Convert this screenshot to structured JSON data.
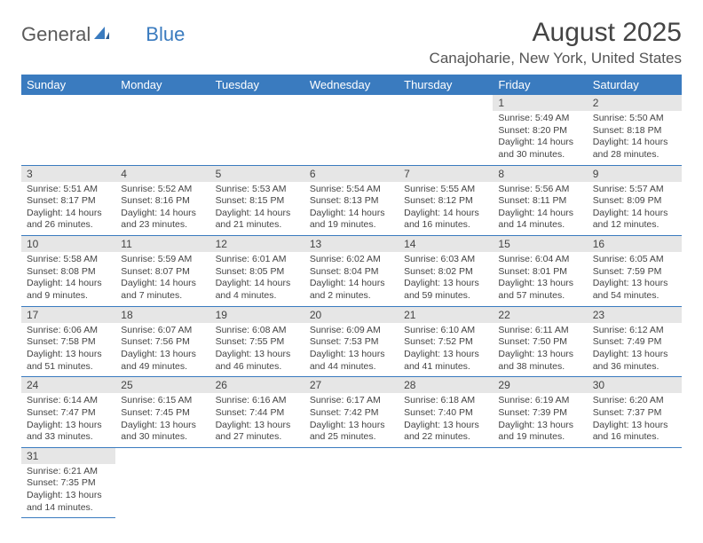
{
  "logo": {
    "part1": "General",
    "part2": "Blue"
  },
  "title": "August 2025",
  "location": "Canajoharie, New York, United States",
  "colors": {
    "header_bg": "#3a7bbf",
    "header_text": "#ffffff",
    "daynum_bg": "#e6e6e6",
    "border": "#3a7bbf",
    "text": "#444444",
    "page_bg": "#ffffff"
  },
  "weekdays": [
    "Sunday",
    "Monday",
    "Tuesday",
    "Wednesday",
    "Thursday",
    "Friday",
    "Saturday"
  ],
  "weeks": [
    [
      null,
      null,
      null,
      null,
      null,
      {
        "d": "1",
        "sr": "5:49 AM",
        "ss": "8:20 PM",
        "dl": "14 hours and 30 minutes."
      },
      {
        "d": "2",
        "sr": "5:50 AM",
        "ss": "8:18 PM",
        "dl": "14 hours and 28 minutes."
      }
    ],
    [
      {
        "d": "3",
        "sr": "5:51 AM",
        "ss": "8:17 PM",
        "dl": "14 hours and 26 minutes."
      },
      {
        "d": "4",
        "sr": "5:52 AM",
        "ss": "8:16 PM",
        "dl": "14 hours and 23 minutes."
      },
      {
        "d": "5",
        "sr": "5:53 AM",
        "ss": "8:15 PM",
        "dl": "14 hours and 21 minutes."
      },
      {
        "d": "6",
        "sr": "5:54 AM",
        "ss": "8:13 PM",
        "dl": "14 hours and 19 minutes."
      },
      {
        "d": "7",
        "sr": "5:55 AM",
        "ss": "8:12 PM",
        "dl": "14 hours and 16 minutes."
      },
      {
        "d": "8",
        "sr": "5:56 AM",
        "ss": "8:11 PM",
        "dl": "14 hours and 14 minutes."
      },
      {
        "d": "9",
        "sr": "5:57 AM",
        "ss": "8:09 PM",
        "dl": "14 hours and 12 minutes."
      }
    ],
    [
      {
        "d": "10",
        "sr": "5:58 AM",
        "ss": "8:08 PM",
        "dl": "14 hours and 9 minutes."
      },
      {
        "d": "11",
        "sr": "5:59 AM",
        "ss": "8:07 PM",
        "dl": "14 hours and 7 minutes."
      },
      {
        "d": "12",
        "sr": "6:01 AM",
        "ss": "8:05 PM",
        "dl": "14 hours and 4 minutes."
      },
      {
        "d": "13",
        "sr": "6:02 AM",
        "ss": "8:04 PM",
        "dl": "14 hours and 2 minutes."
      },
      {
        "d": "14",
        "sr": "6:03 AM",
        "ss": "8:02 PM",
        "dl": "13 hours and 59 minutes."
      },
      {
        "d": "15",
        "sr": "6:04 AM",
        "ss": "8:01 PM",
        "dl": "13 hours and 57 minutes."
      },
      {
        "d": "16",
        "sr": "6:05 AM",
        "ss": "7:59 PM",
        "dl": "13 hours and 54 minutes."
      }
    ],
    [
      {
        "d": "17",
        "sr": "6:06 AM",
        "ss": "7:58 PM",
        "dl": "13 hours and 51 minutes."
      },
      {
        "d": "18",
        "sr": "6:07 AM",
        "ss": "7:56 PM",
        "dl": "13 hours and 49 minutes."
      },
      {
        "d": "19",
        "sr": "6:08 AM",
        "ss": "7:55 PM",
        "dl": "13 hours and 46 minutes."
      },
      {
        "d": "20",
        "sr": "6:09 AM",
        "ss": "7:53 PM",
        "dl": "13 hours and 44 minutes."
      },
      {
        "d": "21",
        "sr": "6:10 AM",
        "ss": "7:52 PM",
        "dl": "13 hours and 41 minutes."
      },
      {
        "d": "22",
        "sr": "6:11 AM",
        "ss": "7:50 PM",
        "dl": "13 hours and 38 minutes."
      },
      {
        "d": "23",
        "sr": "6:12 AM",
        "ss": "7:49 PM",
        "dl": "13 hours and 36 minutes."
      }
    ],
    [
      {
        "d": "24",
        "sr": "6:14 AM",
        "ss": "7:47 PM",
        "dl": "13 hours and 33 minutes."
      },
      {
        "d": "25",
        "sr": "6:15 AM",
        "ss": "7:45 PM",
        "dl": "13 hours and 30 minutes."
      },
      {
        "d": "26",
        "sr": "6:16 AM",
        "ss": "7:44 PM",
        "dl": "13 hours and 27 minutes."
      },
      {
        "d": "27",
        "sr": "6:17 AM",
        "ss": "7:42 PM",
        "dl": "13 hours and 25 minutes."
      },
      {
        "d": "28",
        "sr": "6:18 AM",
        "ss": "7:40 PM",
        "dl": "13 hours and 22 minutes."
      },
      {
        "d": "29",
        "sr": "6:19 AM",
        "ss": "7:39 PM",
        "dl": "13 hours and 19 minutes."
      },
      {
        "d": "30",
        "sr": "6:20 AM",
        "ss": "7:37 PM",
        "dl": "13 hours and 16 minutes."
      }
    ],
    [
      {
        "d": "31",
        "sr": "6:21 AM",
        "ss": "7:35 PM",
        "dl": "13 hours and 14 minutes."
      },
      null,
      null,
      null,
      null,
      null,
      null
    ]
  ],
  "labels": {
    "sunrise": "Sunrise: ",
    "sunset": "Sunset: ",
    "daylight": "Daylight: "
  }
}
